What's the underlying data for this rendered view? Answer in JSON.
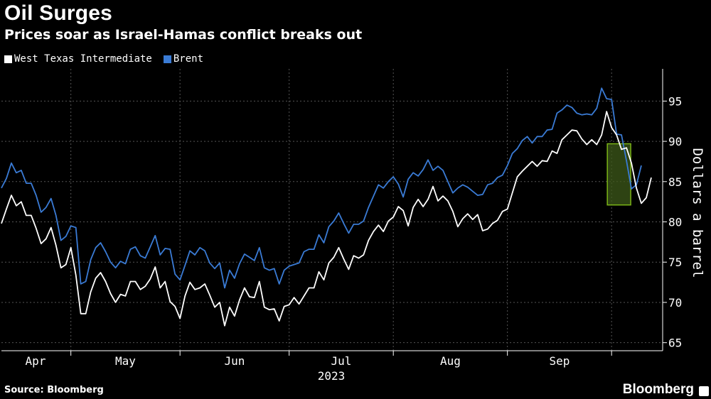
{
  "header": {
    "title": "Oil Surges",
    "subtitle": "Prices soar as Israel-Hamas conflict breaks out"
  },
  "legend": [
    {
      "label": "West Texas Intermediate",
      "color": "#ffffff"
    },
    {
      "label": "Brent",
      "color": "#3a7bd5"
    }
  ],
  "footer": {
    "source": "Source: Bloomberg",
    "brand": "Bloomberg"
  },
  "chart_data": {
    "type": "line",
    "title": "Oil Surges",
    "subtitle": "Prices soar as Israel-Hamas conflict breaks out",
    "ylabel": "Dollars a barrel",
    "year_label": "2023",
    "ylim": [
      64,
      99
    ],
    "yticks": [
      65,
      70,
      75,
      80,
      85,
      90,
      95
    ],
    "grid": true,
    "legend_position": "top-left",
    "x_tick_labels": [
      "Apr",
      "May",
      "Jun",
      "Jul",
      "Aug",
      "Sep"
    ],
    "highlight": {
      "from_index": 123,
      "to_index": 126,
      "ylim": [
        82.1,
        89.7
      ],
      "fill": "#3d5a1a",
      "stroke": "#7ab317"
    },
    "series": [
      {
        "name": "West Texas Intermediate",
        "color": "#ffffff",
        "values": [
          79.8,
          81.6,
          83.3,
          82.0,
          82.5,
          80.8,
          80.8,
          79.2,
          77.3,
          77.9,
          79.3,
          77.1,
          74.3,
          74.7,
          76.8,
          73.4,
          68.6,
          68.6,
          71.3,
          73.0,
          73.7,
          72.6,
          71.1,
          70.0,
          71.0,
          70.8,
          72.6,
          72.6,
          71.6,
          72.0,
          72.9,
          74.4,
          71.8,
          72.6,
          70.1,
          69.5,
          68.0,
          70.8,
          72.5,
          71.6,
          71.8,
          72.3,
          70.9,
          69.4,
          70.0,
          67.1,
          69.4,
          68.3,
          70.3,
          71.8,
          70.7,
          70.6,
          72.6,
          69.4,
          69.1,
          69.2,
          67.7,
          69.5,
          69.7,
          70.6,
          69.8,
          70.8,
          71.8,
          71.8,
          73.8,
          72.8,
          74.9,
          75.6,
          76.8,
          75.4,
          74.1,
          75.8,
          75.5,
          75.9,
          77.7,
          78.8,
          79.6,
          78.8,
          80.1,
          80.6,
          81.9,
          81.4,
          79.5,
          81.8,
          82.8,
          81.9,
          82.8,
          84.4,
          82.6,
          83.2,
          82.6,
          81.3,
          79.4,
          80.4,
          81.0,
          80.3,
          80.9,
          78.9,
          79.1,
          79.8,
          80.2,
          81.3,
          81.6,
          83.6,
          85.6,
          86.3,
          86.9,
          87.5,
          86.9,
          87.6,
          87.5,
          88.8,
          88.5,
          90.2,
          90.8,
          91.4,
          91.3,
          90.3,
          89.6,
          90.2,
          89.6,
          90.8,
          93.7,
          91.7,
          90.8,
          89.0,
          89.2,
          87.3,
          84.2,
          82.3,
          83.0,
          85.5
        ]
      },
      {
        "name": "Brent",
        "color": "#3a7bd5",
        "values": [
          84.2,
          85.4,
          87.3,
          86.1,
          86.4,
          84.8,
          84.8,
          83.3,
          81.2,
          81.8,
          82.9,
          80.8,
          77.7,
          78.2,
          79.5,
          79.3,
          72.3,
          72.6,
          75.3,
          76.8,
          77.4,
          76.3,
          75.0,
          74.3,
          75.1,
          74.8,
          76.6,
          76.9,
          75.8,
          75.5,
          76.9,
          78.3,
          75.9,
          76.7,
          76.6,
          73.5,
          72.8,
          74.6,
          76.4,
          75.9,
          76.8,
          76.4,
          74.9,
          74.2,
          74.9,
          71.8,
          74.0,
          73.0,
          74.8,
          76.0,
          75.6,
          75.2,
          76.8,
          74.3,
          74.0,
          74.2,
          72.3,
          74.0,
          74.5,
          74.7,
          74.9,
          76.3,
          76.6,
          76.6,
          78.4,
          77.4,
          79.4,
          80.1,
          81.1,
          79.8,
          78.6,
          79.7,
          79.7,
          80.1,
          81.8,
          83.2,
          84.6,
          84.2,
          85.0,
          85.6,
          84.7,
          83.1,
          85.3,
          86.1,
          85.7,
          86.5,
          87.7,
          86.4,
          86.9,
          86.4,
          85.0,
          83.6,
          84.2,
          84.6,
          84.3,
          83.8,
          83.3,
          83.4,
          84.6,
          84.8,
          85.5,
          85.8,
          87.0,
          88.5,
          89.1,
          90.1,
          90.6,
          89.8,
          90.6,
          90.6,
          91.4,
          91.5,
          93.5,
          93.9,
          94.5,
          94.2,
          93.5,
          93.3,
          93.4,
          93.3,
          94.1,
          96.6,
          95.3,
          95.2,
          90.9,
          90.8,
          87.6,
          84.1,
          84.6,
          87.0
        ]
      }
    ]
  }
}
